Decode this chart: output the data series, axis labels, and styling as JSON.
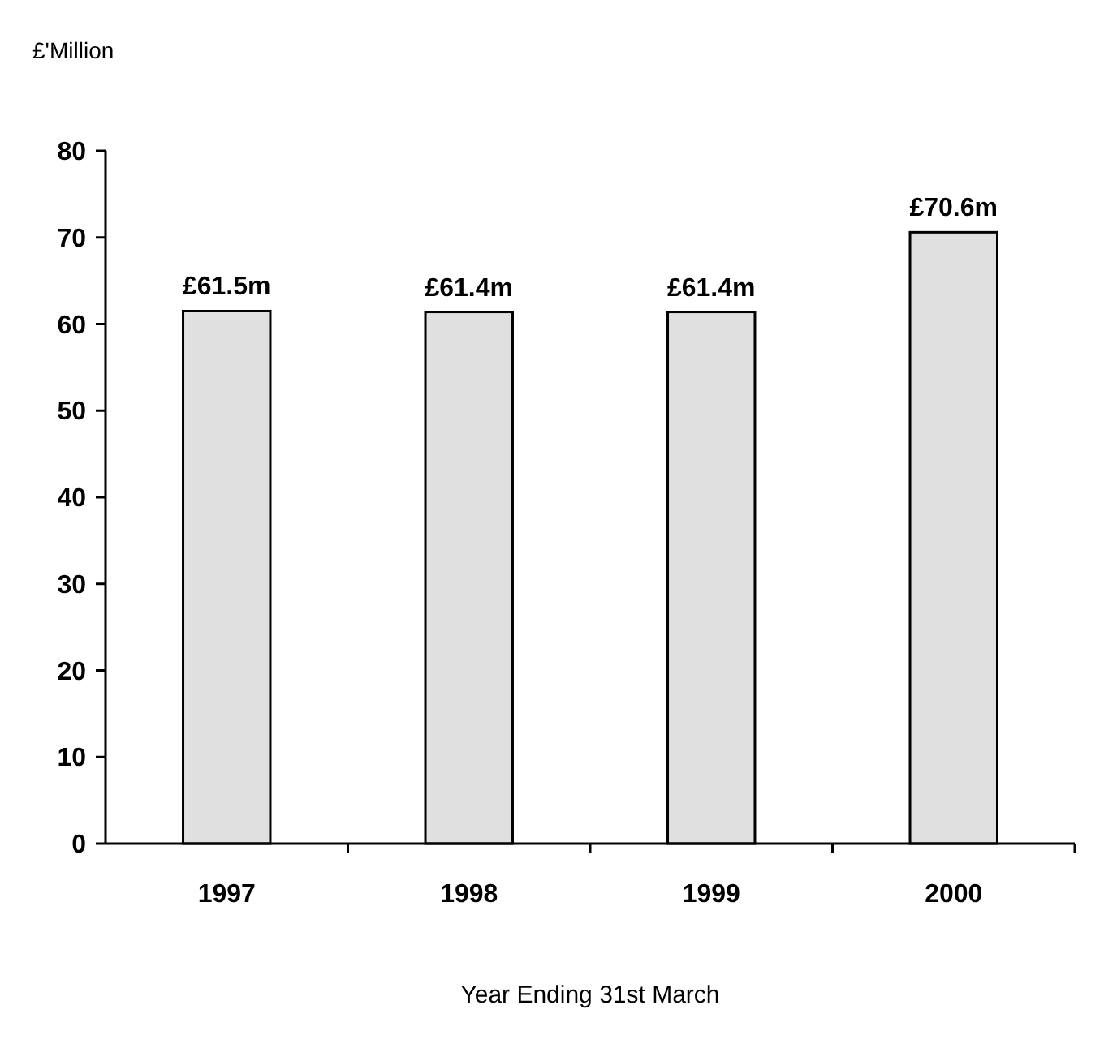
{
  "chart_data": {
    "type": "bar",
    "ylabel": "£'Million",
    "xlabel": "Year Ending 31st March",
    "categories": [
      "1997",
      "1998",
      "1999",
      "2000"
    ],
    "values": [
      61.5,
      61.4,
      61.4,
      70.6
    ],
    "value_labels": [
      "£61.5m",
      "£61.4m",
      "£61.4m",
      "£70.6m"
    ],
    "color": "#e0e0e0",
    "ylim": [
      0,
      80
    ],
    "yticks": [
      0,
      10,
      20,
      30,
      40,
      50,
      60,
      70,
      80
    ],
    "grid": false
  }
}
